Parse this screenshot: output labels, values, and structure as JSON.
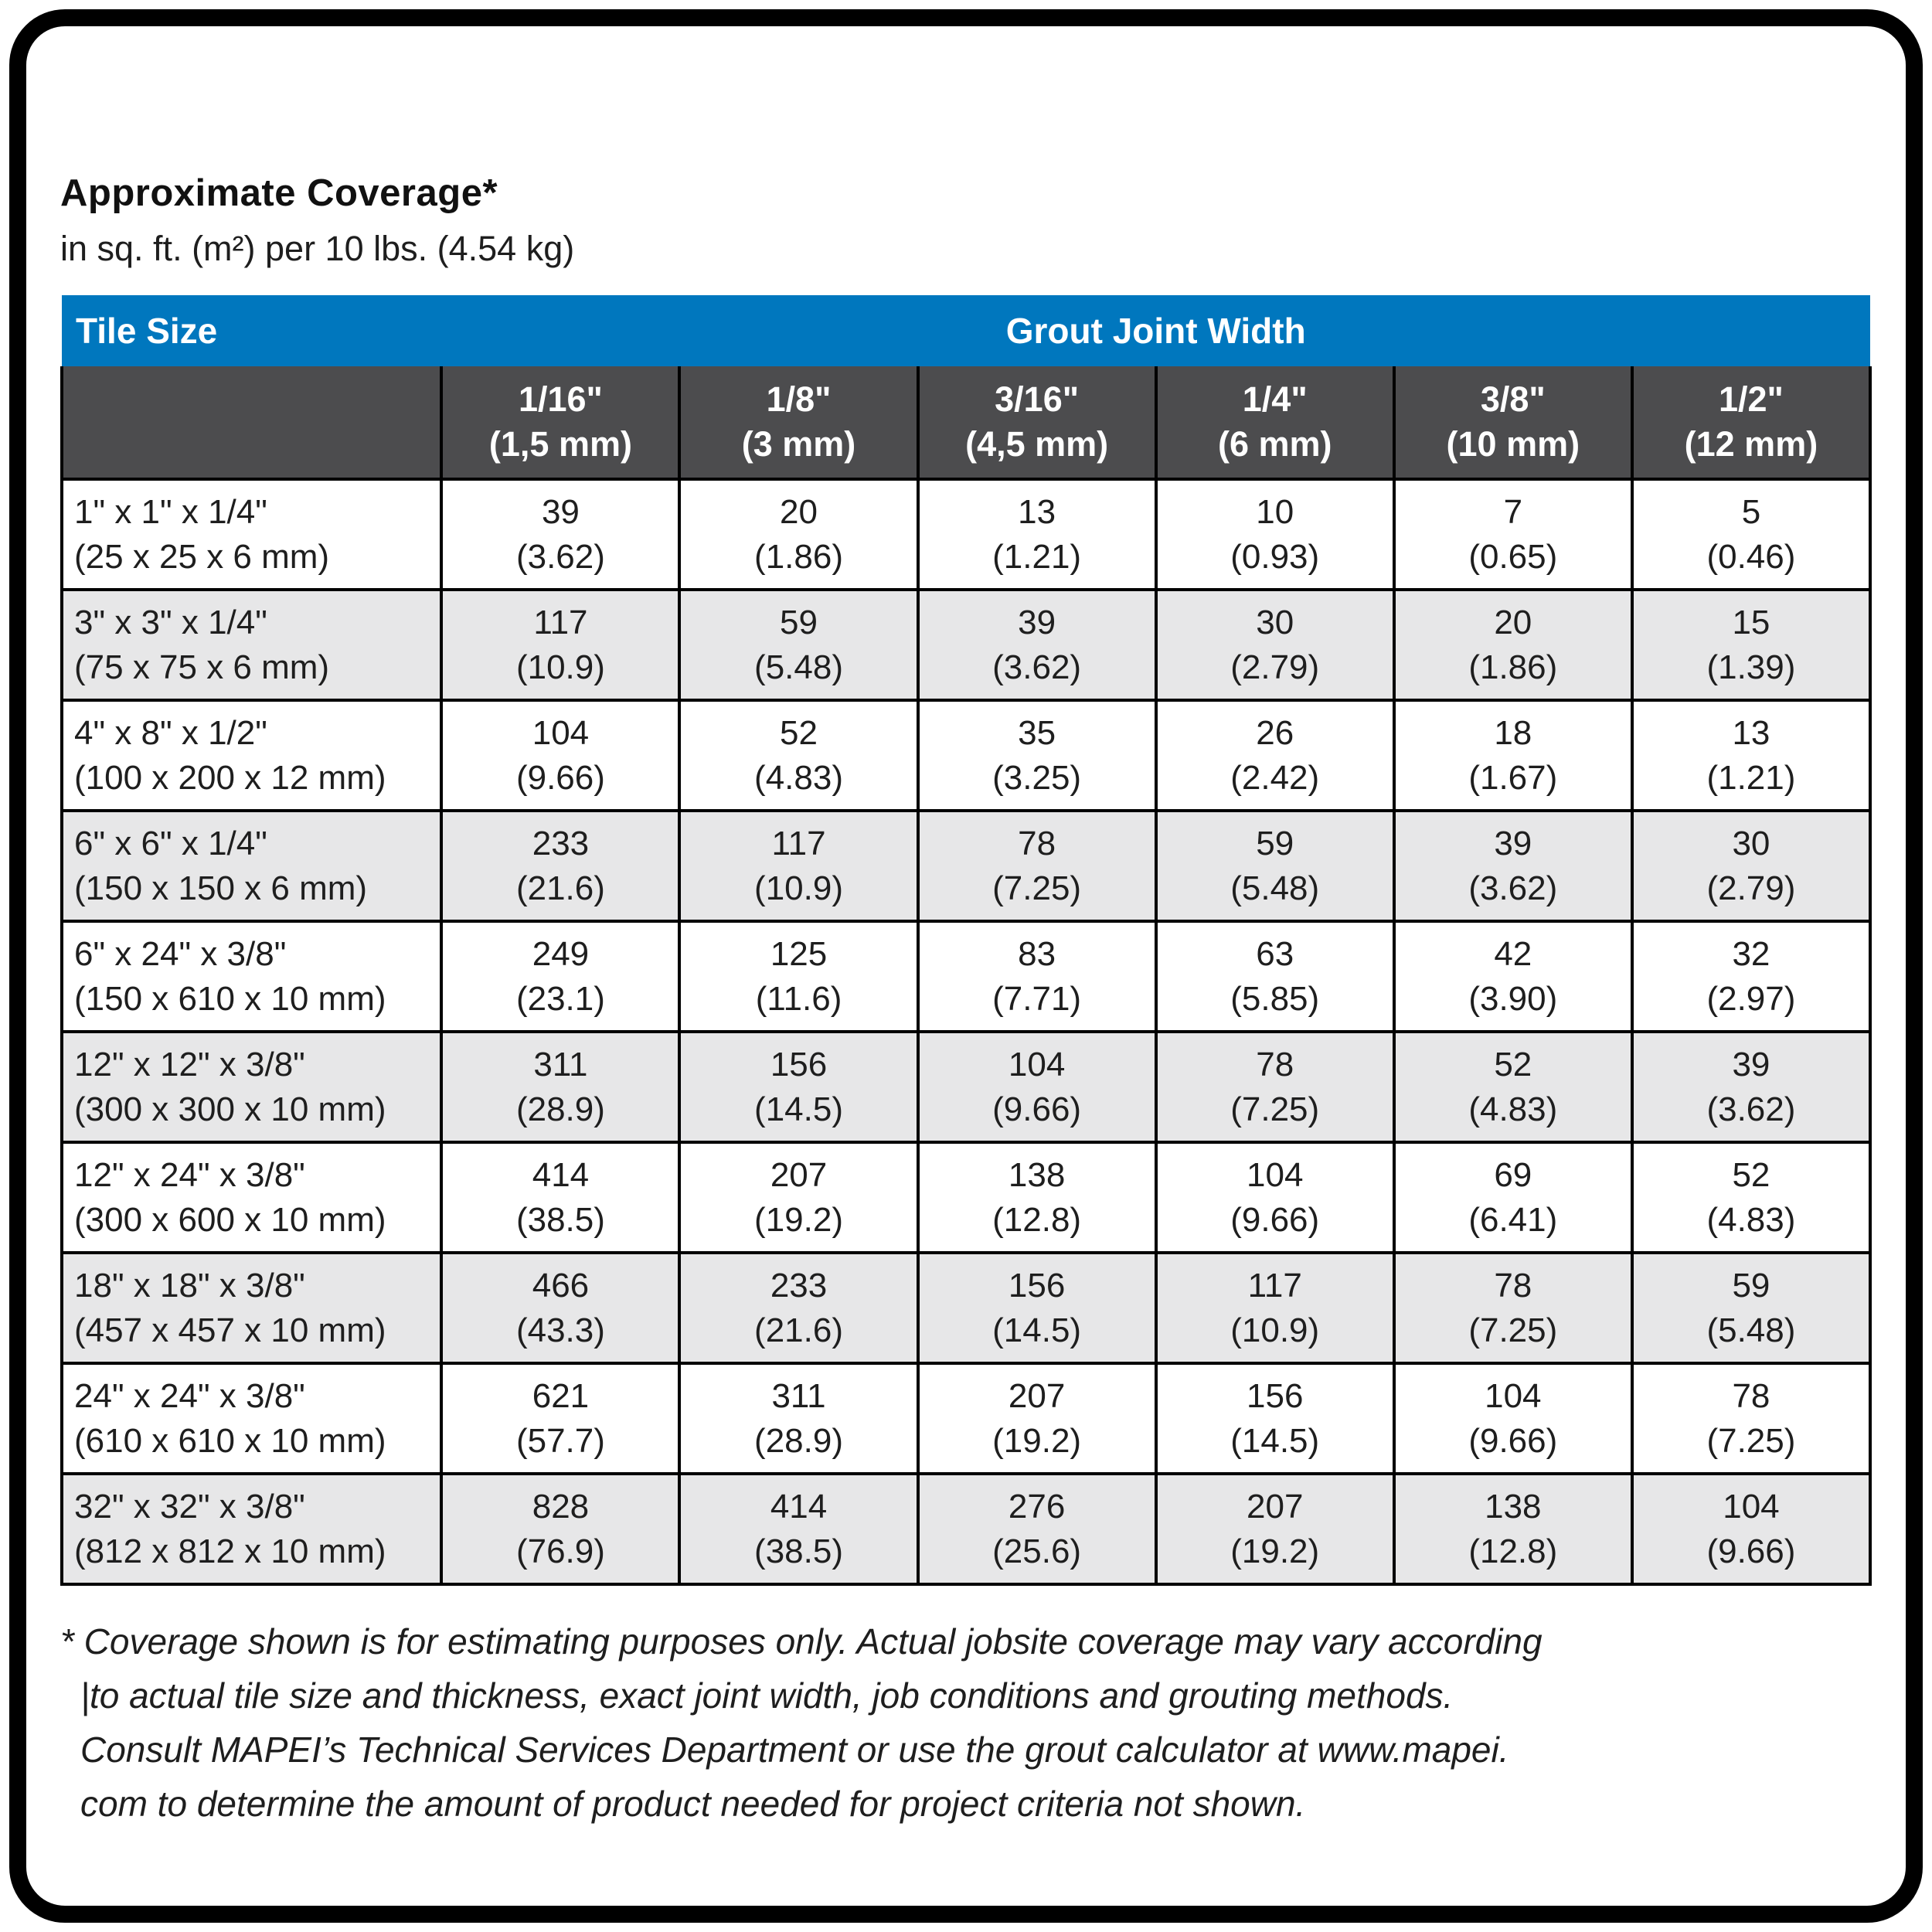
{
  "title": "Approximate Coverage*",
  "subtitle": "in sq. ft. (m²) per 10 lbs. (4.54 kg)",
  "table": {
    "corner_header": "Tile Size",
    "group_header": "Grout Joint Width",
    "columns": [
      {
        "size": "1/16\"",
        "metric": "(1,5 mm)"
      },
      {
        "size": "1/8\"",
        "metric": "(3 mm)"
      },
      {
        "size": "3/16\"",
        "metric": "(4,5 mm)"
      },
      {
        "size": "1/4\"",
        "metric": "(6 mm)"
      },
      {
        "size": "3/8\"",
        "metric": "(10 mm)"
      },
      {
        "size": "1/2\"",
        "metric": "(12 mm)"
      }
    ],
    "rows": [
      {
        "tile": "1\" x 1\" x 1/4\"",
        "tile_metric": "(25 x 25 x 6 mm)",
        "values": [
          {
            "v": "39",
            "m": "(3.62)"
          },
          {
            "v": "20",
            "m": "(1.86)"
          },
          {
            "v": "13",
            "m": "(1.21)"
          },
          {
            "v": "10",
            "m": "(0.93)"
          },
          {
            "v": "7",
            "m": "(0.65)"
          },
          {
            "v": "5",
            "m": "(0.46)"
          }
        ]
      },
      {
        "tile": "3\" x 3\" x 1/4\"",
        "tile_metric": "(75 x 75 x 6 mm)",
        "values": [
          {
            "v": "117",
            "m": "(10.9)"
          },
          {
            "v": "59",
            "m": "(5.48)"
          },
          {
            "v": "39",
            "m": "(3.62)"
          },
          {
            "v": "30",
            "m": "(2.79)"
          },
          {
            "v": "20",
            "m": "(1.86)"
          },
          {
            "v": "15",
            "m": "(1.39)"
          }
        ]
      },
      {
        "tile": "4\" x 8\" x 1/2\"",
        "tile_metric": "(100 x 200 x 12 mm)",
        "values": [
          {
            "v": "104",
            "m": "(9.66)"
          },
          {
            "v": "52",
            "m": "(4.83)"
          },
          {
            "v": "35",
            "m": "(3.25)"
          },
          {
            "v": "26",
            "m": "(2.42)"
          },
          {
            "v": "18",
            "m": "(1.67)"
          },
          {
            "v": "13",
            "m": "(1.21)"
          }
        ]
      },
      {
        "tile": "6\" x 6\" x 1/4\"",
        "tile_metric": "(150 x 150 x 6 mm)",
        "values": [
          {
            "v": "233",
            "m": "(21.6)"
          },
          {
            "v": "117",
            "m": "(10.9)"
          },
          {
            "v": "78",
            "m": "(7.25)"
          },
          {
            "v": "59",
            "m": "(5.48)"
          },
          {
            "v": "39",
            "m": "(3.62)"
          },
          {
            "v": "30",
            "m": "(2.79)"
          }
        ]
      },
      {
        "tile": "6\" x 24\" x 3/8\"",
        "tile_metric": "(150 x 610 x 10 mm)",
        "values": [
          {
            "v": "249",
            "m": "(23.1)"
          },
          {
            "v": "125",
            "m": "(11.6)"
          },
          {
            "v": "83",
            "m": "(7.71)"
          },
          {
            "v": "63",
            "m": "(5.85)"
          },
          {
            "v": "42",
            "m": "(3.90)"
          },
          {
            "v": "32",
            "m": "(2.97)"
          }
        ]
      },
      {
        "tile": "12\" x 12\" x 3/8\"",
        "tile_metric": "(300 x 300 x 10 mm)",
        "values": [
          {
            "v": "311",
            "m": "(28.9)"
          },
          {
            "v": "156",
            "m": "(14.5)"
          },
          {
            "v": "104",
            "m": "(9.66)"
          },
          {
            "v": "78",
            "m": "(7.25)"
          },
          {
            "v": "52",
            "m": "(4.83)"
          },
          {
            "v": "39",
            "m": "(3.62)"
          }
        ]
      },
      {
        "tile": "12\" x 24\" x 3/8\"",
        "tile_metric": "(300 x 600 x 10 mm)",
        "values": [
          {
            "v": "414",
            "m": "(38.5)"
          },
          {
            "v": "207",
            "m": "(19.2)"
          },
          {
            "v": "138",
            "m": "(12.8)"
          },
          {
            "v": "104",
            "m": "(9.66)"
          },
          {
            "v": "69",
            "m": "(6.41)"
          },
          {
            "v": "52",
            "m": "(4.83)"
          }
        ]
      },
      {
        "tile": "18\" x 18\" x 3/8\"",
        "tile_metric": "(457 x 457 x 10 mm)",
        "values": [
          {
            "v": "466",
            "m": "(43.3)"
          },
          {
            "v": "233",
            "m": "(21.6)"
          },
          {
            "v": "156",
            "m": "(14.5)"
          },
          {
            "v": "117",
            "m": "(10.9)"
          },
          {
            "v": "78",
            "m": "(7.25)"
          },
          {
            "v": "59",
            "m": "(5.48)"
          }
        ]
      },
      {
        "tile": "24\" x 24\" x 3/8\"",
        "tile_metric": "(610 x 610 x 10 mm)",
        "values": [
          {
            "v": "621",
            "m": "(57.7)"
          },
          {
            "v": "311",
            "m": "(28.9)"
          },
          {
            "v": "207",
            "m": "(19.2)"
          },
          {
            "v": "156",
            "m": "(14.5)"
          },
          {
            "v": "104",
            "m": "(9.66)"
          },
          {
            "v": "78",
            "m": "(7.25)"
          }
        ]
      },
      {
        "tile": "32\" x 32\" x 3/8\"",
        "tile_metric": "(812 x 812 x 10 mm)",
        "values": [
          {
            "v": "828",
            "m": "(76.9)"
          },
          {
            "v": "414",
            "m": "(38.5)"
          },
          {
            "v": "276",
            "m": "(25.6)"
          },
          {
            "v": "207",
            "m": "(19.2)"
          },
          {
            "v": "138",
            "m": "(12.8)"
          },
          {
            "v": "104",
            "m": "(9.66)"
          }
        ]
      }
    ]
  },
  "footnote_lines": [
    "* Coverage shown is for estimating purposes only. Actual jobsite coverage may vary according",
    "|to actual tile size and thickness, exact joint width, job conditions and grouting methods.",
    "Consult MAPEI’s Technical Services Department or use the grout calculator at www.mapei.",
    "com to determine the amount of product needed for project criteria not shown."
  ],
  "colors": {
    "header_blue": "#0077BE",
    "header_dark_gray": "#4C4C4E",
    "row_alternate_gray": "#E7E7E8",
    "border_black": "#000000"
  }
}
